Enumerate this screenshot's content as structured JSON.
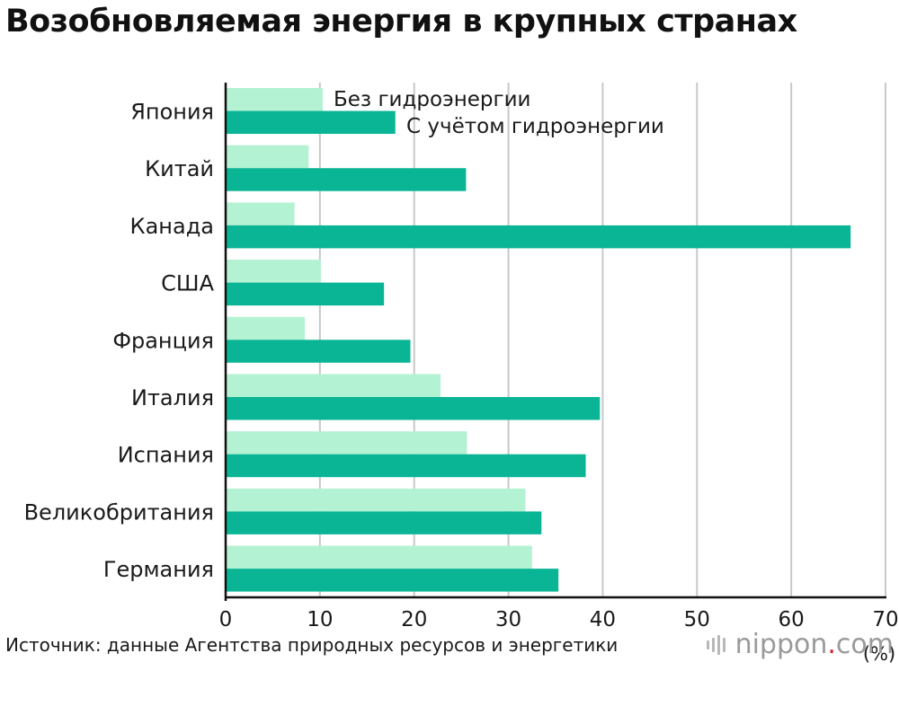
{
  "title": "Возобновляемая энергия в крупных странах",
  "source": "Источник: данные Агентства природных ресурсов и энергетики",
  "logo": {
    "name": "nippon",
    "dot": ".",
    "tld": "com"
  },
  "colors": {
    "without_hydro": "#b3f2d2",
    "with_hydro": "#0ab596",
    "grid": "#c8c8c8",
    "axis": "#111111"
  },
  "chart_data": {
    "type": "bar",
    "orientation": "horizontal",
    "title": "Возобновляемая энергия в крупных странах",
    "categories": [
      "Япония",
      "Китай",
      "Канада",
      "США",
      "Франция",
      "Италия",
      "Испания",
      "Великобритания",
      "Германия"
    ],
    "series": [
      {
        "name": "Без гидроэнергии",
        "values": [
          10.3,
          8.8,
          7.3,
          10.1,
          8.4,
          22.8,
          25.6,
          31.8,
          32.5
        ]
      },
      {
        "name": "С учётом гидроэнергии",
        "values": [
          18.0,
          25.5,
          66.3,
          16.8,
          19.6,
          39.7,
          38.2,
          33.5,
          35.3
        ]
      }
    ],
    "xlim": [
      0,
      70
    ],
    "xticks": [
      0,
      10,
      20,
      30,
      40,
      50,
      60,
      70
    ],
    "xlabel": "(%)",
    "grid": true,
    "legend": "top"
  }
}
